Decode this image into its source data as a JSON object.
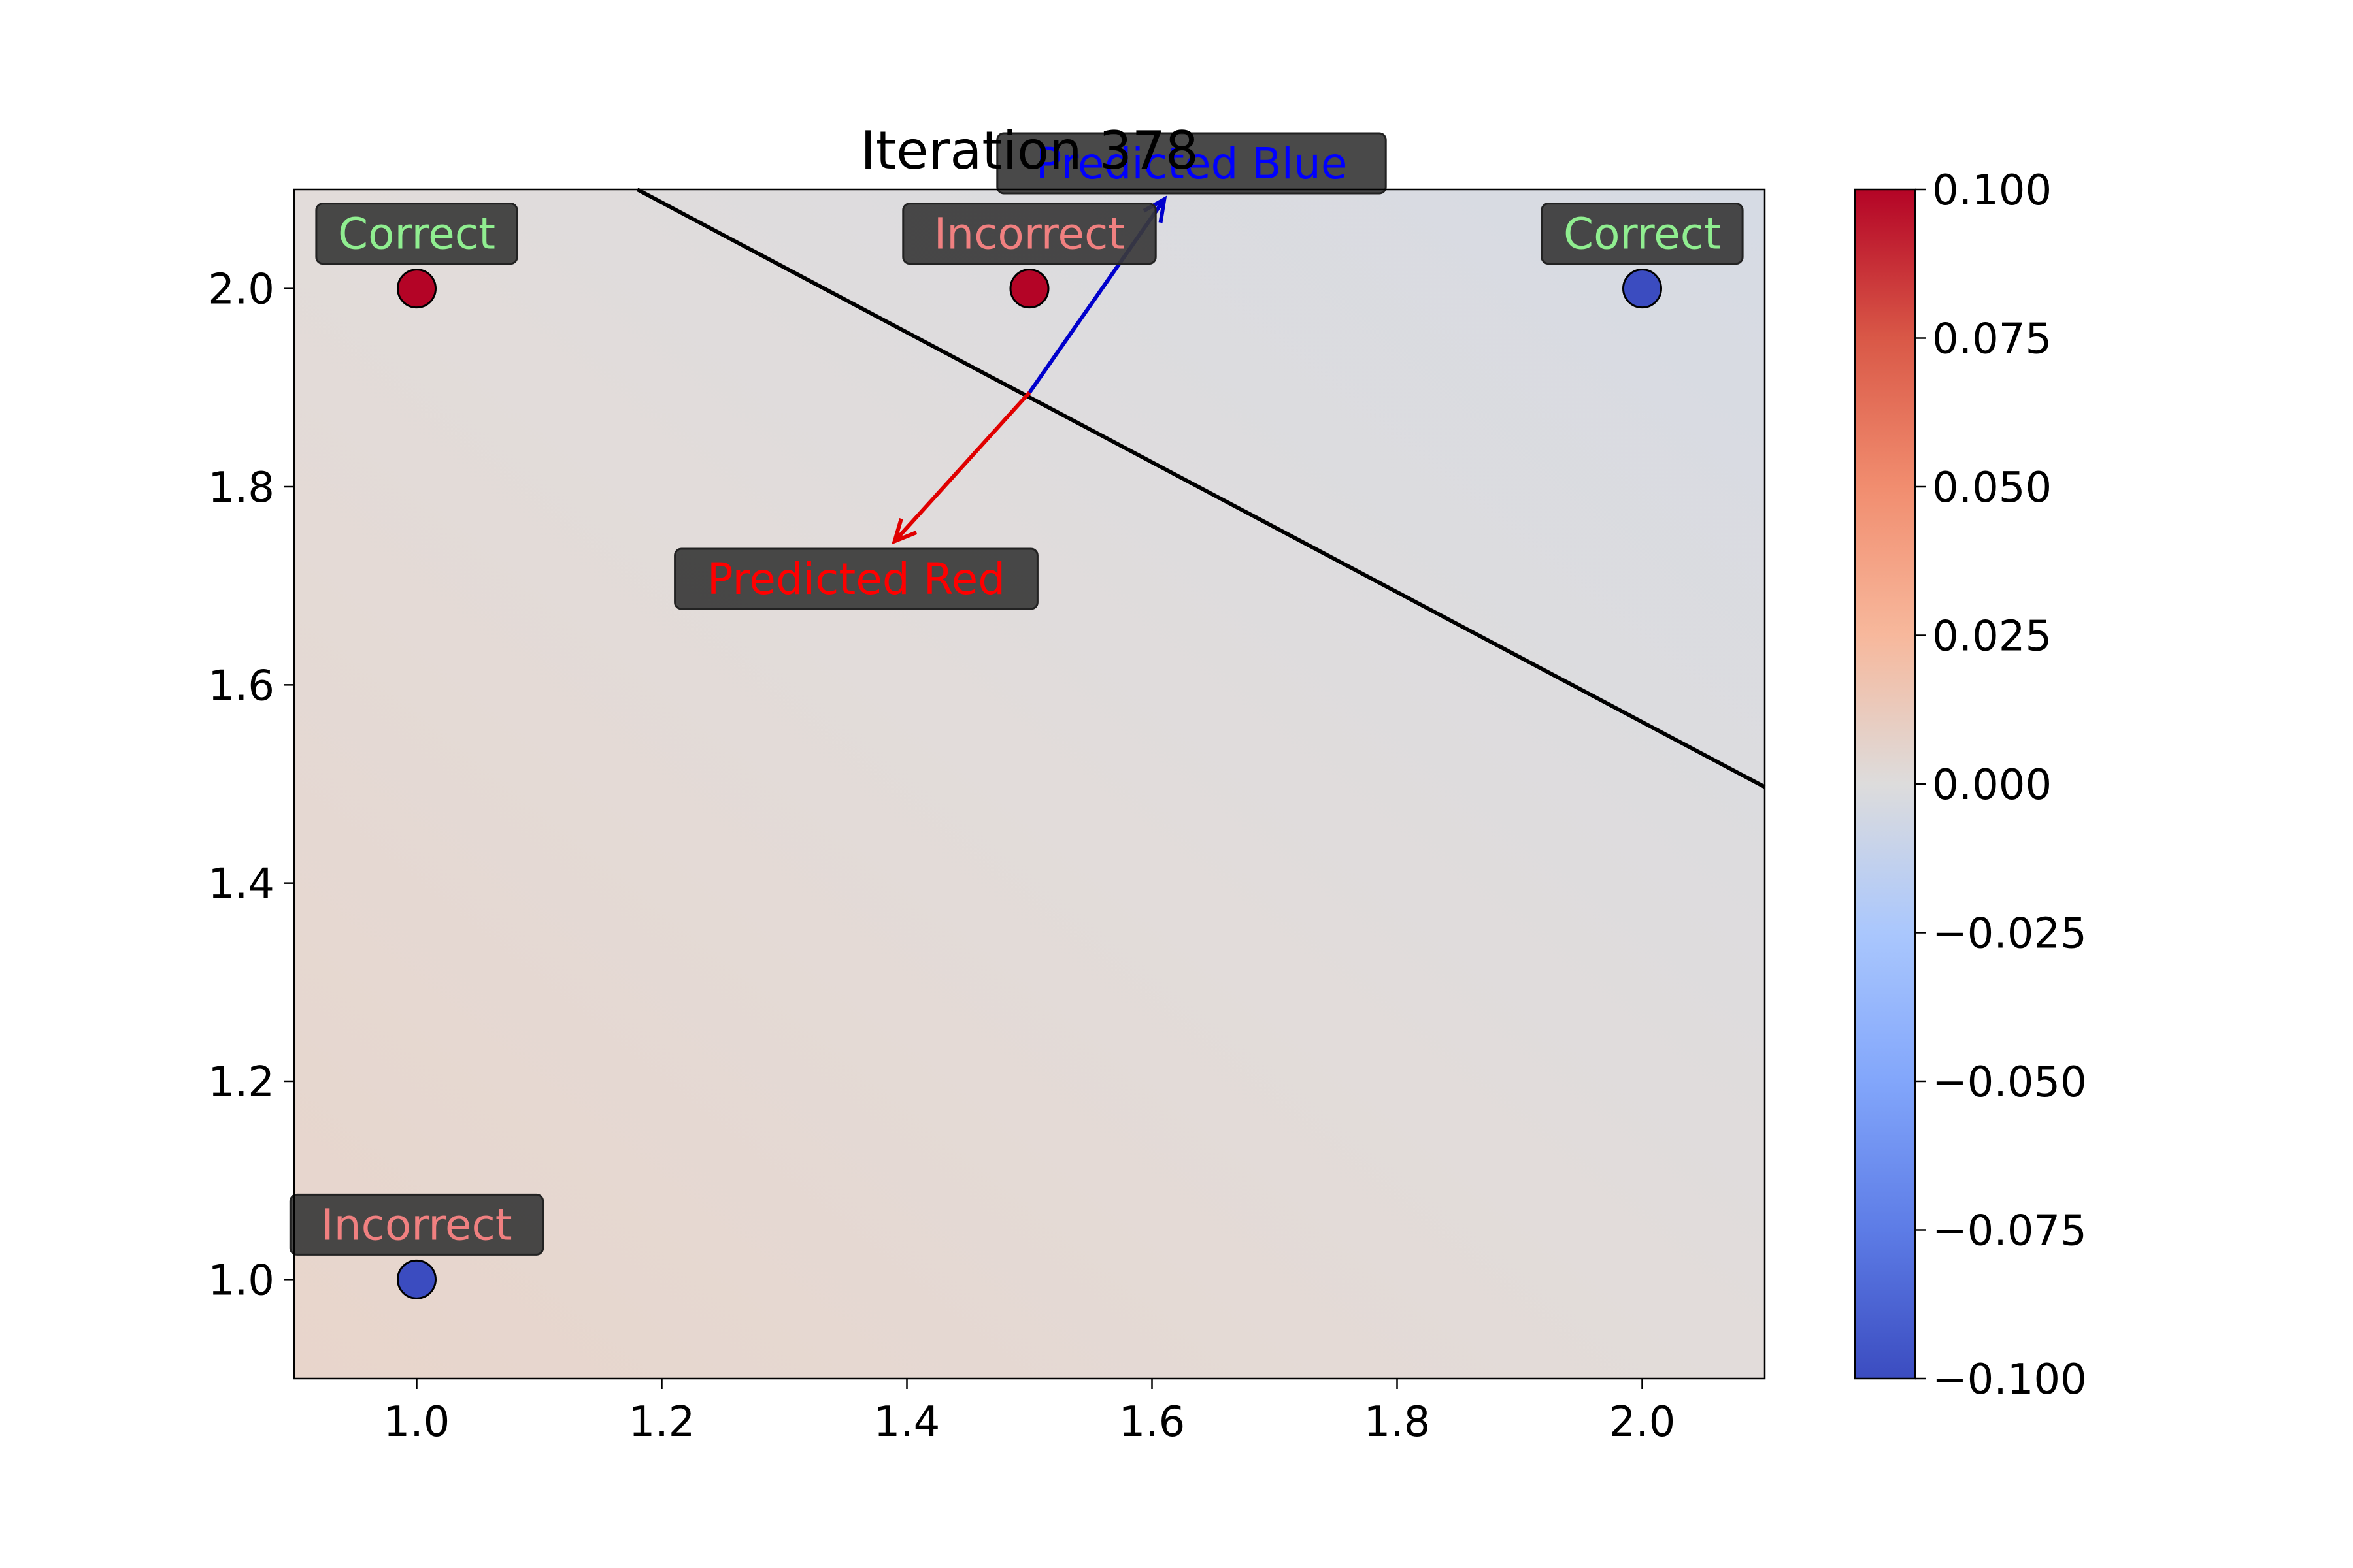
{
  "chart_data": {
    "type": "scatter",
    "title": "Iteration 378",
    "xlabel": "",
    "ylabel": "",
    "xlim": [
      0.9,
      2.1
    ],
    "ylim": [
      0.9,
      2.1
    ],
    "xticks": [
      "1.0",
      "1.2",
      "1.4",
      "1.6",
      "1.8",
      "2.0"
    ],
    "yticks": [
      "1.0",
      "1.2",
      "1.4",
      "1.6",
      "1.8",
      "2.0"
    ],
    "grid": false,
    "background": "coolwarm decision surface",
    "points": [
      {
        "x": 1.0,
        "y": 2.0,
        "class": "red",
        "color": "#b40426",
        "status": "Correct",
        "status_color": "#90ee90"
      },
      {
        "x": 1.5,
        "y": 2.0,
        "class": "red",
        "color": "#b40426",
        "status": "Incorrect",
        "status_color": "#f08080"
      },
      {
        "x": 2.0,
        "y": 2.0,
        "class": "blue",
        "color": "#3b4cc0",
        "status": "Correct",
        "status_color": "#90ee90"
      },
      {
        "x": 1.0,
        "y": 1.0,
        "class": "blue",
        "color": "#3b4cc0",
        "status": "Incorrect",
        "status_color": "#f08080"
      }
    ],
    "decision_boundary": [
      [
        1.18,
        2.1
      ],
      [
        2.1,
        1.497
      ]
    ],
    "arrows": [
      {
        "from": [
          1.5,
          1.895
        ],
        "to": [
          1.61,
          2.09
        ],
        "color": "#0000cc",
        "label": "Predicted Blue",
        "label_color": "#0000ff"
      },
      {
        "from": [
          1.5,
          1.895
        ],
        "to": [
          1.39,
          1.745
        ],
        "color": "#e00000",
        "label": "Predicted Red",
        "label_color": "#ff0000"
      }
    ],
    "colorbar": {
      "min": -0.1,
      "max": 0.1,
      "ticks": [
        "0.100",
        "0.075",
        "0.050",
        "0.025",
        "0.000",
        "−0.025",
        "−0.050",
        "−0.075",
        "−0.100"
      ],
      "colormap": "coolwarm"
    }
  }
}
